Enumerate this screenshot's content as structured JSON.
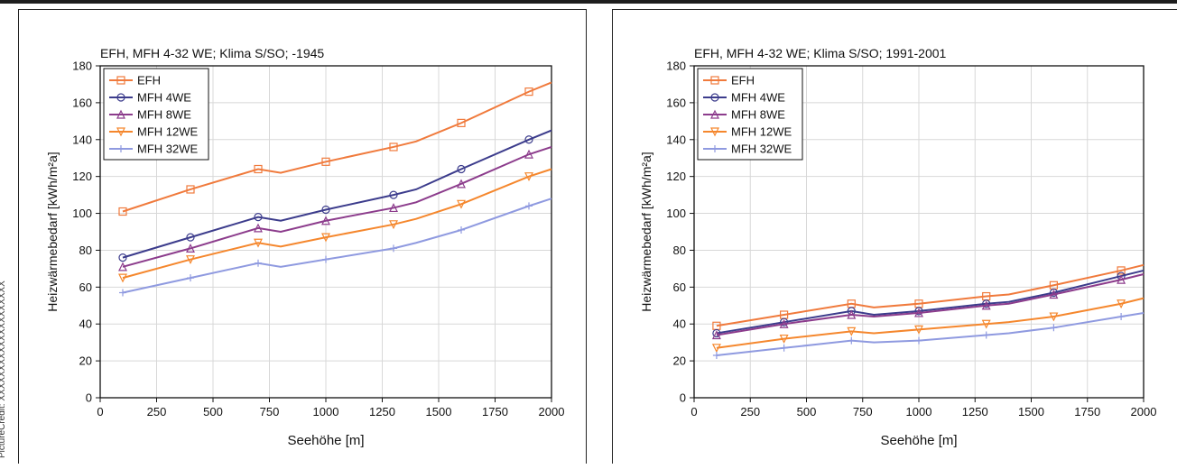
{
  "credit": "PictureCredit: XXXXXXXXXXXXXXXXXXXX",
  "chart_data": [
    {
      "type": "line",
      "title": "EFH, MFH 4-32 WE; Klima S/SO; -1945",
      "xlabel": "Seehöhe [m]",
      "ylabel": "Heizwärmebedarf [kWh/m²a]",
      "xlim": [
        0,
        2000
      ],
      "ylim": [
        0,
        180
      ],
      "xticks": [
        "0",
        "250",
        "500",
        "750",
        "1000",
        "1250",
        "1500",
        "1750",
        "2000"
      ],
      "yticks": [
        "0",
        "20",
        "40",
        "60",
        "80",
        "100",
        "120",
        "140",
        "160",
        "180"
      ],
      "grid": true,
      "legend_position": "top-left",
      "x": [
        100,
        400,
        700,
        800,
        1000,
        1300,
        1400,
        1600,
        1900,
        2000
      ],
      "series": [
        {
          "name": "EFH",
          "color": "#f07a3c",
          "marker": "square",
          "values": [
            101,
            113,
            124,
            122,
            128,
            136,
            139,
            149,
            166,
            171
          ]
        },
        {
          "name": "MFH 4WE",
          "color": "#3c3c8c",
          "marker": "circle",
          "values": [
            76,
            87,
            98,
            96,
            102,
            110,
            113,
            124,
            140,
            145
          ]
        },
        {
          "name": "MFH 8WE",
          "color": "#8c3c8c",
          "marker": "triangle-up",
          "values": [
            71,
            81,
            92,
            90,
            96,
            103,
            106,
            116,
            132,
            136
          ]
        },
        {
          "name": "MFH 12WE",
          "color": "#f5872d",
          "marker": "triangle-down",
          "values": [
            65,
            75,
            84,
            82,
            87,
            94,
            97,
            105,
            120,
            124
          ]
        },
        {
          "name": "MFH 32WE",
          "color": "#8f9ae0",
          "marker": "cross",
          "values": [
            57,
            65,
            73,
            71,
            75,
            81,
            84,
            91,
            104,
            108
          ]
        }
      ]
    },
    {
      "type": "line",
      "title": "EFH, MFH 4-32 WE; Klima S/SO; 1991-2001",
      "xlabel": "Seehöhe [m]",
      "ylabel": "Heizwärmebedarf [kWh/m²a]",
      "xlim": [
        0,
        2000
      ],
      "ylim": [
        0,
        180
      ],
      "xticks": [
        "0",
        "250",
        "500",
        "750",
        "1000",
        "1250",
        "1500",
        "1750",
        "2000"
      ],
      "yticks": [
        "0",
        "20",
        "40",
        "60",
        "80",
        "100",
        "120",
        "140",
        "160",
        "180"
      ],
      "grid": true,
      "legend_position": "top-left",
      "x": [
        100,
        400,
        700,
        800,
        1000,
        1300,
        1400,
        1600,
        1900,
        2000
      ],
      "series": [
        {
          "name": "EFH",
          "color": "#f07a3c",
          "marker": "square",
          "values": [
            39,
            45,
            51,
            49,
            51,
            55,
            56,
            61,
            69,
            72
          ]
        },
        {
          "name": "MFH 4WE",
          "color": "#3c3c8c",
          "marker": "circle",
          "values": [
            35,
            41,
            47,
            45,
            47,
            51,
            52,
            57,
            66,
            69
          ]
        },
        {
          "name": "MFH 8WE",
          "color": "#8c3c8c",
          "marker": "triangle-up",
          "values": [
            34,
            40,
            45,
            44,
            46,
            50,
            51,
            56,
            64,
            67
          ]
        },
        {
          "name": "MFH 12WE",
          "color": "#f5872d",
          "marker": "triangle-down",
          "values": [
            27,
            32,
            36,
            35,
            37,
            40,
            41,
            44,
            51,
            54
          ]
        },
        {
          "name": "MFH 32WE",
          "color": "#8f9ae0",
          "marker": "cross",
          "values": [
            23,
            27,
            31,
            30,
            31,
            34,
            35,
            38,
            44,
            46
          ]
        }
      ]
    }
  ]
}
